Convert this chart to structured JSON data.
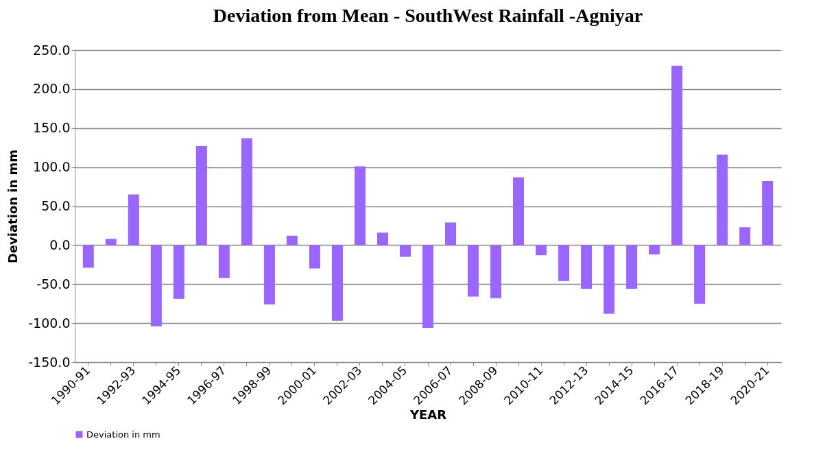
{
  "chart_data": {
    "type": "bar",
    "title": "Deviation from Mean - SouthWest Rainfall -Agniyar",
    "xlabel": "YEAR",
    "ylabel": "Deviation in mm",
    "categories": [
      "1990-91",
      null,
      "1992-93",
      null,
      "1994-95",
      null,
      "1996-97",
      null,
      "1998-99",
      null,
      "2000-01",
      null,
      "2002-03",
      null,
      "2004-05",
      null,
      "2006-07",
      null,
      "2008-09",
      null,
      "2010-11",
      null,
      "2012-13",
      null,
      "2014-15",
      null,
      "2016-17",
      null,
      "2018-19",
      null,
      "2020-21"
    ],
    "series": [
      {
        "name": "Deviation in mm",
        "color": "#9966ff",
        "values": [
          -29,
          8,
          65,
          -104,
          -69,
          127,
          -42,
          137,
          -76,
          12,
          -30,
          -97,
          101,
          16,
          -15,
          -106,
          29,
          -66,
          -68,
          87,
          -13,
          -46,
          -56,
          -88,
          -56,
          -12,
          230,
          -75,
          116,
          23,
          82
        ]
      }
    ],
    "ylim": [
      -150,
      250
    ],
    "yticks": [
      {
        "value": -150,
        "label": "-150.0"
      },
      {
        "value": -100,
        "label": "-100.0"
      },
      {
        "value": -50,
        "label": "-50.0"
      },
      {
        "value": 0,
        "label": "0.0"
      },
      {
        "value": 50,
        "label": "50.0"
      },
      {
        "value": 100,
        "label": "100.0"
      },
      {
        "value": 150,
        "label": "150.0"
      },
      {
        "value": 200,
        "label": "200.0"
      },
      {
        "value": 250,
        "label": "250.0"
      }
    ],
    "grid": "y",
    "legend": "bottom"
  }
}
